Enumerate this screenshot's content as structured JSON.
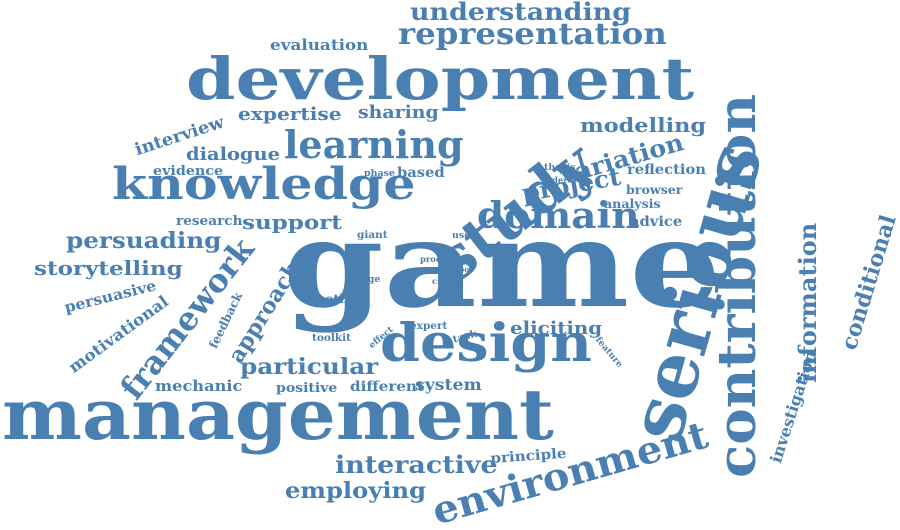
{
  "colors": {
    "word": "#4a7fb2",
    "background": "#ffffff"
  },
  "words": [
    {
      "id": "game",
      "text": "game"
    },
    {
      "id": "management",
      "text": "management"
    },
    {
      "id": "development",
      "text": "development"
    },
    {
      "id": "serious",
      "text": "serious"
    },
    {
      "id": "contribution",
      "text": "contribution"
    },
    {
      "id": "design",
      "text": "design"
    },
    {
      "id": "knowledge",
      "text": "knowledge"
    },
    {
      "id": "study",
      "text": "study"
    },
    {
      "id": "environment",
      "text": "environment"
    },
    {
      "id": "representation",
      "text": "representation"
    },
    {
      "id": "understanding",
      "text": "understanding"
    },
    {
      "id": "learning",
      "text": "learning"
    },
    {
      "id": "domain",
      "text": "domain"
    },
    {
      "id": "framework",
      "text": "framework"
    },
    {
      "id": "information",
      "text": "information"
    },
    {
      "id": "conditional",
      "text": "conditional"
    },
    {
      "id": "interactive",
      "text": "interactive"
    },
    {
      "id": "employing",
      "text": "employing"
    },
    {
      "id": "particular",
      "text": "particular"
    },
    {
      "id": "persuading",
      "text": "persuading"
    },
    {
      "id": "storytelling",
      "text": "storytelling"
    },
    {
      "id": "project",
      "text": "project"
    },
    {
      "id": "variation",
      "text": "variation"
    },
    {
      "id": "modelling",
      "text": "modelling"
    },
    {
      "id": "support",
      "text": "support"
    },
    {
      "id": "approach",
      "text": "approach"
    },
    {
      "id": "investigation",
      "text": "investigation"
    },
    {
      "id": "expertise",
      "text": "expertise"
    },
    {
      "id": "sharing",
      "text": "sharing"
    },
    {
      "id": "interview",
      "text": "interview"
    },
    {
      "id": "dialogue",
      "text": "dialogue"
    },
    {
      "id": "evaluation",
      "text": "evaluation"
    },
    {
      "id": "motivational",
      "text": "motivational"
    },
    {
      "id": "persuasive",
      "text": "persuasive"
    },
    {
      "id": "eliciting",
      "text": "eliciting"
    },
    {
      "id": "evidence",
      "text": "evidence"
    },
    {
      "id": "reflection",
      "text": "reflection"
    },
    {
      "id": "system",
      "text": "system"
    },
    {
      "id": "mechanic",
      "text": "mechanic"
    },
    {
      "id": "positive",
      "text": "positive"
    },
    {
      "id": "different",
      "text": "different"
    },
    {
      "id": "principle",
      "text": "principle"
    },
    {
      "id": "based",
      "text": "based"
    },
    {
      "id": "advice",
      "text": "advice"
    },
    {
      "id": "research",
      "text": "research"
    },
    {
      "id": "feedback",
      "text": "feedback"
    },
    {
      "id": "browser",
      "text": "browser"
    },
    {
      "id": "analysis",
      "text": "analysis"
    },
    {
      "id": "method",
      "text": "method"
    },
    {
      "id": "thesis",
      "text": "thesis"
    },
    {
      "id": "phase",
      "text": "phase"
    },
    {
      "id": "giant",
      "text": "giant"
    },
    {
      "id": "user",
      "text": "user"
    },
    {
      "id": "toolkit",
      "text": "toolkit"
    },
    {
      "id": "expert",
      "text": "expert"
    },
    {
      "id": "task",
      "text": "task"
    },
    {
      "id": "effect",
      "text": "effect"
    },
    {
      "id": "feature",
      "text": "feature"
    },
    {
      "id": "stage",
      "text": "stage"
    },
    {
      "id": "proc",
      "text": "proc"
    },
    {
      "id": "need",
      "text": "need"
    },
    {
      "id": "class",
      "text": "class"
    },
    {
      "id": "final",
      "text": "final"
    },
    {
      "id": "tool",
      "text": "tool"
    },
    {
      "id": "more",
      "text": "more"
    },
    {
      "id": "order",
      "text": "order"
    }
  ]
}
